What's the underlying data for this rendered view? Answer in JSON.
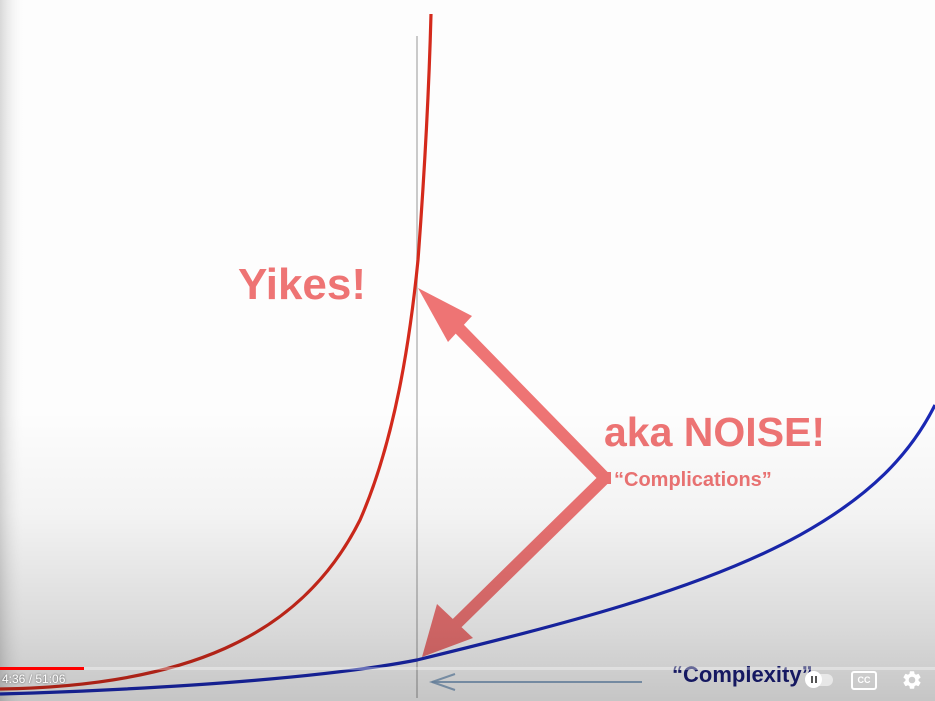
{
  "slide": {
    "label_yikes": "Yikes!",
    "label_noise": "aka NOISE!",
    "label_complications": "“Complications”",
    "label_complexity": "“Complexity”",
    "colors": {
      "red_curve": "#d42a1c",
      "blue_curve": "#1a28b4",
      "salmon": "#ee7474",
      "navy_text": "#1a1e78"
    }
  },
  "player": {
    "current_time": "4:36",
    "duration": "51:06",
    "time_display": "4:36 / 51:06",
    "progress_fraction": 0.09,
    "cc_label": "CC",
    "icons": {
      "autoplay": "autoplay-toggle-icon",
      "captions": "cc-icon",
      "settings": "gear-icon"
    }
  }
}
